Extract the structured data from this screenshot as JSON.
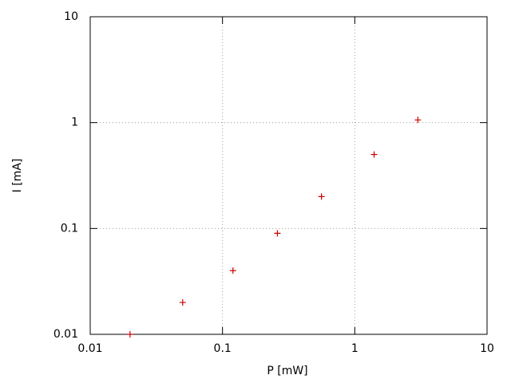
{
  "chart_data": {
    "type": "scatter",
    "xlabel": "P [mW]",
    "ylabel": "I [mA]",
    "xscale": "log",
    "yscale": "log",
    "xlim": [
      0.01,
      10
    ],
    "ylim": [
      0.01,
      10
    ],
    "xticks": [
      0.01,
      0.1,
      1,
      10
    ],
    "yticks": [
      0.01,
      0.1,
      1,
      10
    ],
    "grid": true,
    "series": [
      {
        "color": "#cc0000",
        "x": [
          0.02,
          0.05,
          0.12,
          0.26,
          0.56,
          1.4,
          3
        ],
        "values": [
          0.01,
          0.02,
          0.04,
          0.09,
          0.2,
          0.5,
          1.06
        ]
      }
    ]
  }
}
